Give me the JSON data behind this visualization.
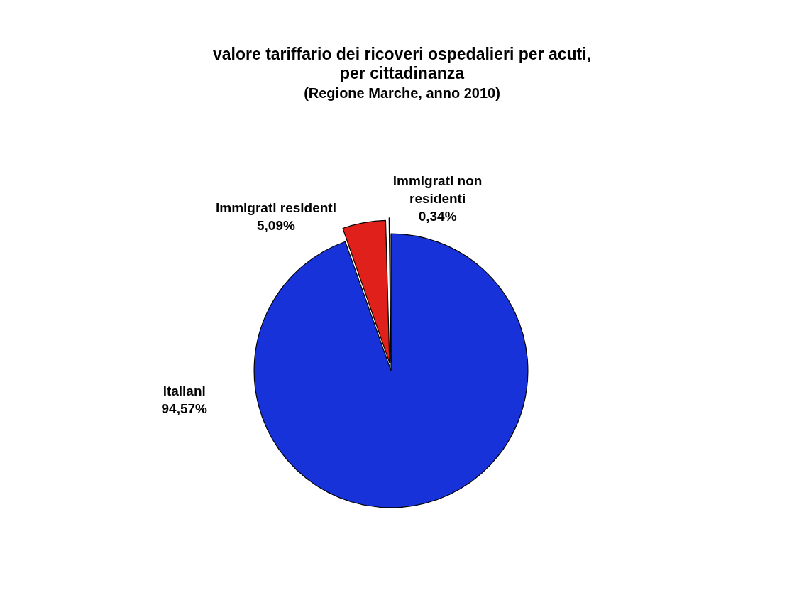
{
  "chart_data": {
    "type": "pie",
    "title": "valore tariffario dei ricoveri ospedalieri per acuti, per cittadinanza",
    "subtitle": "(Regione Marche, anno 2010)",
    "categories": [
      "italiani",
      "immigrati residenti",
      "immigrati non residenti"
    ],
    "values": [
      94.57,
      5.09,
      0.34
    ],
    "value_labels": [
      "94,57%",
      "5,09%",
      "0,34%"
    ],
    "colors": [
      "#1632d8",
      "#e0201b",
      "#2a9a3a"
    ],
    "legend": false
  }
}
